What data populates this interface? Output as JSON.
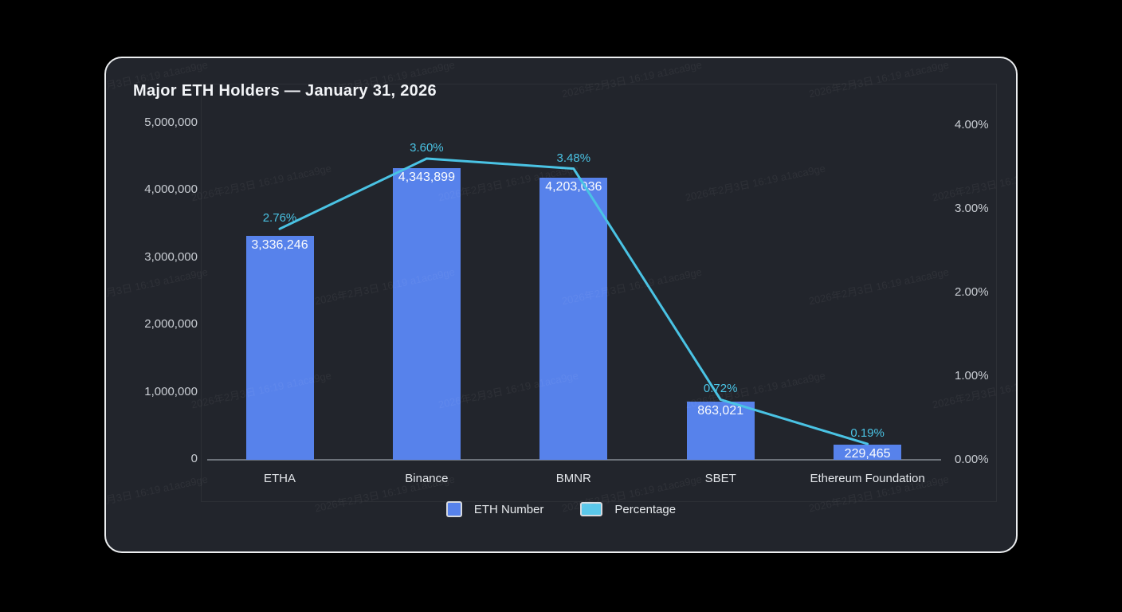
{
  "title": "Major ETH Holders — January 31, 2026",
  "watermark": {
    "text": "2026年2月3日 16:19 a1aca9ge"
  },
  "colors": {
    "page_background": "#000000",
    "card_background": "#22252c",
    "card_border": "#eceef0",
    "bar": "#5782eb",
    "line": "#4ac3e4",
    "legend_line_swatch": "#5bc8ea",
    "value_label": "#fafbfd",
    "axis_text": "#c9cdd3"
  },
  "chart_data": {
    "type": "bar+line",
    "title": "Major ETH Holders — January 31, 2026",
    "categories": [
      "ETHA",
      "Binance",
      "BMNR",
      "SBET",
      "Ethereum Foundation"
    ],
    "series": [
      {
        "name": "ETH Number",
        "type": "bar",
        "color": "#5782eb",
        "values": [
          3336246,
          4343899,
          4203036,
          863021,
          229465
        ],
        "labels": [
          "3,336,246",
          "4,343,899",
          "4,203,036",
          "863,021",
          "229,465"
        ]
      },
      {
        "name": "Percentage",
        "type": "line",
        "color": "#4ac3e4",
        "values": [
          2.76,
          3.6,
          3.48,
          0.72,
          0.19
        ],
        "labels": [
          "2.76%",
          "3.60%",
          "3.48%",
          "0.72%",
          "0.19%"
        ]
      }
    ],
    "y_left_axis": {
      "min": 0,
      "max": 5000000,
      "ticks": [
        "5,000,000",
        "4,000,000",
        "3,000,000",
        "2,000,000",
        "1,000,000",
        "0"
      ]
    },
    "y_right_axis": {
      "min": 0,
      "max": 4,
      "ticks": [
        "4.00%",
        "3.00%",
        "2.00%",
        "1.00%",
        "0.00%"
      ]
    },
    "grid": false,
    "legend_position": "bottom"
  }
}
